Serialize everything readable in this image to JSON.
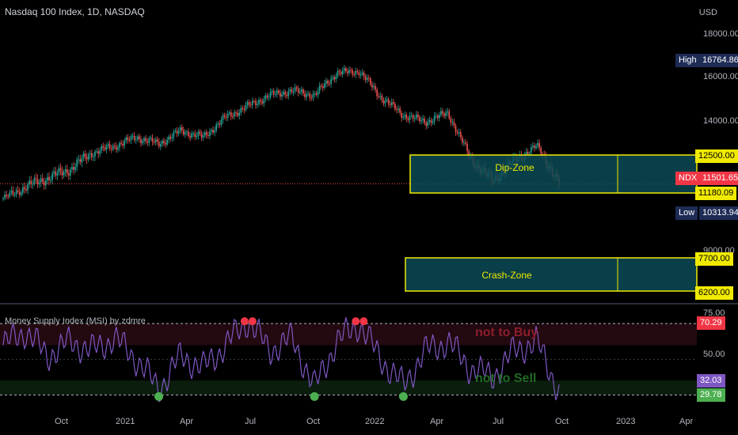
{
  "header": {
    "title": "Nasdaq 100 Index, 1D, NASDAQ",
    "currency": "USD"
  },
  "colors": {
    "up": "#26a69a",
    "down": "#ef5350",
    "zone_border": "#f0ea00",
    "zone_fill": "#0b4a55",
    "msi_line": "#7e57c2",
    "overbought_dot": "#f23645",
    "oversold_dot": "#4caf50"
  },
  "price_axis": {
    "ticks": [
      "18000.00",
      "16000.00",
      "14000.00",
      "9000.00"
    ],
    "tags": {
      "high_label": "High",
      "high_value": "16764.86",
      "dip_top": "12500.00",
      "ndx_label": "NDX",
      "ndx_value": "11501.65",
      "dip_bottom": "11180.09",
      "low_label": "Low",
      "low_value": "10313.94",
      "crash_top": "7700.00",
      "crash_bottom": "6200.00"
    }
  },
  "zones": {
    "dip_label": "Dip-Zone",
    "crash_label": "Crash-Zone"
  },
  "indicator": {
    "title": "Money Supply Index (MSI) by zdmre",
    "axis_ticks": [
      "75.00",
      "50.00"
    ],
    "tags": {
      "upper": "70.29",
      "current": "32.03",
      "lower": "29.78"
    },
    "not_to_buy": "not to Buy",
    "not_to_sell": "not to Sell"
  },
  "time_axis": [
    "Oct",
    "2021",
    "Apr",
    "Jul",
    "Oct",
    "2022",
    "Apr",
    "Jul",
    "Oct",
    "2023",
    "Apr"
  ],
  "chart_data": [
    {
      "type": "candlestick",
      "title": "Nasdaq 100 Index, 1D, NASDAQ",
      "x": [
        "2020-08",
        "2020-09",
        "2020-10",
        "2020-11",
        "2020-12",
        "2021-01",
        "2021-02",
        "2021-03",
        "2021-04",
        "2021-05",
        "2021-06",
        "2021-07",
        "2021-08",
        "2021-09",
        "2021-10",
        "2021-11",
        "2021-12",
        "2022-01",
        "2022-02",
        "2022-03",
        "2022-04",
        "2022-05",
        "2022-06",
        "2022-07",
        "2022-08",
        "2022-09"
      ],
      "series": [
        {
          "values": [
            10900,
            11400,
            11700,
            12000,
            12600,
            12900,
            13300,
            13000,
            13600,
            13300,
            14200,
            14700,
            15200,
            15400,
            15200,
            16200,
            16300,
            15100,
            14300,
            14000,
            14400,
            12400,
            11600,
            12300,
            12900,
            11500
          ]
        }
      ],
      "ylim": [
        6000,
        18600
      ],
      "horizontal_bands": [
        {
          "label": "Dip-Zone",
          "range": [
            11180.09,
            12500.0
          ]
        },
        {
          "label": "Crash-Zone",
          "range": [
            6200.0,
            7700.0
          ]
        }
      ],
      "annotations": {
        "high": 16764.86,
        "low": 10313.94,
        "last": 11501.65
      }
    },
    {
      "type": "line",
      "title": "Money Supply Index (MSI) by zdmre",
      "x": [
        "2020-08",
        "2020-09",
        "2020-10",
        "2020-11",
        "2020-12",
        "2021-01",
        "2021-02",
        "2021-03",
        "2021-04",
        "2021-05",
        "2021-06",
        "2021-07",
        "2021-08",
        "2021-09",
        "2021-10",
        "2021-11",
        "2021-12",
        "2022-01",
        "2022-02",
        "2022-03",
        "2022-04",
        "2022-05",
        "2022-06",
        "2022-07",
        "2022-08",
        "2022-09"
      ],
      "series": [
        {
          "values": [
            58,
            66,
            52,
            60,
            55,
            62,
            50,
            33,
            52,
            45,
            58,
            72,
            55,
            62,
            34,
            60,
            70,
            50,
            35,
            55,
            60,
            45,
            40,
            55,
            60,
            32
          ]
        }
      ],
      "ylim": [
        25,
        78
      ],
      "levels": [
        70.29,
        29.78
      ],
      "markers": {
        "overbought": [
          "2021-07",
          "2021-12"
        ],
        "oversold": [
          "2021-03",
          "2021-10",
          "2022-02"
        ]
      }
    }
  ]
}
